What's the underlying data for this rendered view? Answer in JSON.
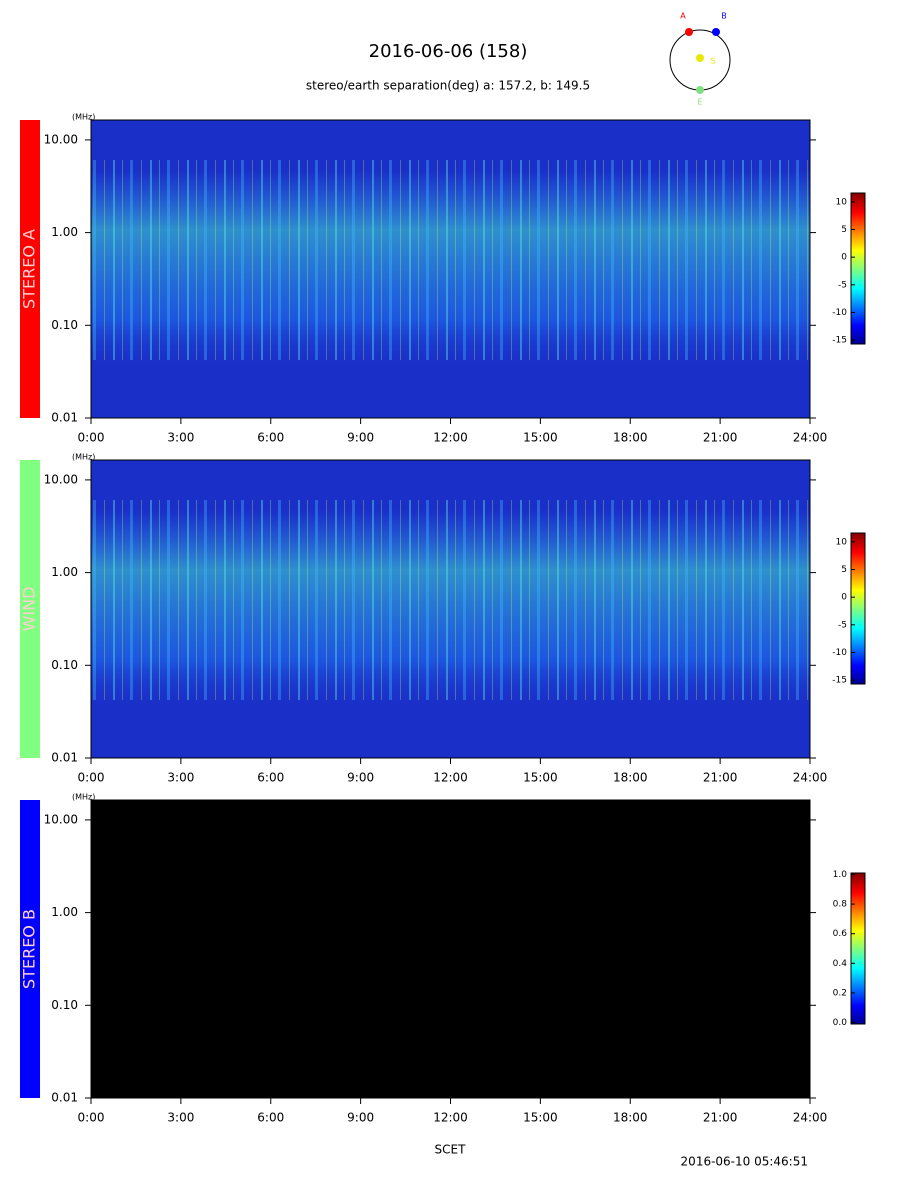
{
  "title": "2016-06-06 (158)",
  "subtitle": "stereo/earth separation(deg) a: 157.2, b: 149.5",
  "orbit": {
    "labels": [
      "A",
      "B",
      "S",
      "E"
    ],
    "colors": [
      "#ff0000",
      "#0000ff",
      "#e8e800",
      "#80e080"
    ]
  },
  "x_label": "SCET",
  "timestamp": "2016-06-10 05:46:51",
  "chart_data": [
    {
      "type": "spectrogram",
      "panel": "STEREO A",
      "color": "#ff0000",
      "y_unit": "(MHz)",
      "log_y": true,
      "background": "#1a2fc8",
      "texture": true,
      "ylim": [
        0.01,
        16.4
      ],
      "yticks": [
        {
          "value": 10,
          "label": "10.00"
        },
        {
          "value": 1,
          "label": "1.00"
        },
        {
          "value": 0.1,
          "label": "0.10"
        },
        {
          "value": 0.01,
          "label": "0.01"
        }
      ],
      "xlim": [
        0,
        24
      ],
      "xticks": [
        {
          "value": 0,
          "label": "0:00"
        },
        {
          "value": 3,
          "label": "3:00"
        },
        {
          "value": 6,
          "label": "6:00"
        },
        {
          "value": 9,
          "label": "9:00"
        },
        {
          "value": 12,
          "label": "12:00"
        },
        {
          "value": 15,
          "label": "15:00"
        },
        {
          "value": 18,
          "label": "18:00"
        },
        {
          "value": 21,
          "label": "21:00"
        },
        {
          "value": 24,
          "label": "24:00"
        }
      ],
      "colorbar": {
        "lim": [
          -15.7,
          11.6
        ],
        "ticks": [
          -15,
          -10,
          -5,
          0,
          5,
          10
        ]
      }
    },
    {
      "type": "spectrogram",
      "panel": "WIND",
      "color": "#80ff80",
      "y_unit": "(MHz)",
      "log_y": true,
      "background": "#1a2fc8",
      "texture": true,
      "ylim": [
        0.01,
        16.4
      ],
      "yticks": [
        {
          "value": 10,
          "label": "10.00"
        },
        {
          "value": 1,
          "label": "1.00"
        },
        {
          "value": 0.1,
          "label": "0.10"
        },
        {
          "value": 0.01,
          "label": "0.01"
        }
      ],
      "xlim": [
        0,
        24
      ],
      "xticks": [
        {
          "value": 0,
          "label": "0:00"
        },
        {
          "value": 3,
          "label": "3:00"
        },
        {
          "value": 6,
          "label": "6:00"
        },
        {
          "value": 9,
          "label": "9:00"
        },
        {
          "value": 12,
          "label": "12:00"
        },
        {
          "value": 15,
          "label": "15:00"
        },
        {
          "value": 18,
          "label": "18:00"
        },
        {
          "value": 21,
          "label": "21:00"
        },
        {
          "value": 24,
          "label": "24:00"
        }
      ],
      "colorbar": {
        "lim": [
          -15.7,
          11.6
        ],
        "ticks": [
          -15,
          -10,
          -5,
          0,
          5,
          10
        ]
      }
    },
    {
      "type": "spectrogram",
      "panel": "STEREO B",
      "color": "#0000ff",
      "y_unit": "(MHz)",
      "log_y": true,
      "background": "#000000",
      "texture": false,
      "ylim": [
        0.01,
        16.4
      ],
      "yticks": [
        {
          "value": 10,
          "label": "10.00"
        },
        {
          "value": 1,
          "label": "1.00"
        },
        {
          "value": 0.1,
          "label": "0.10"
        },
        {
          "value": 0.01,
          "label": "0.01"
        }
      ],
      "xlim": [
        0,
        24
      ],
      "xticks": [
        {
          "value": 0,
          "label": "0:00"
        },
        {
          "value": 3,
          "label": "3:00"
        },
        {
          "value": 6,
          "label": "6:00"
        },
        {
          "value": 9,
          "label": "9:00"
        },
        {
          "value": 12,
          "label": "12:00"
        },
        {
          "value": 15,
          "label": "15:00"
        },
        {
          "value": 18,
          "label": "18:00"
        },
        {
          "value": 21,
          "label": "21:00"
        },
        {
          "value": 24,
          "label": "24:00"
        }
      ],
      "colorbar": {
        "lim": [
          -0.01,
          1.01
        ],
        "ticks": [
          {
            "value": 0,
            "label": "0.0"
          },
          {
            "value": 0.2,
            "label": "0.2"
          },
          {
            "value": 0.4,
            "label": "0.4"
          },
          {
            "value": 0.6,
            "label": "0.6"
          },
          {
            "value": 0.8,
            "label": "0.8"
          },
          {
            "value": 1,
            "label": "1.0"
          }
        ]
      }
    }
  ]
}
